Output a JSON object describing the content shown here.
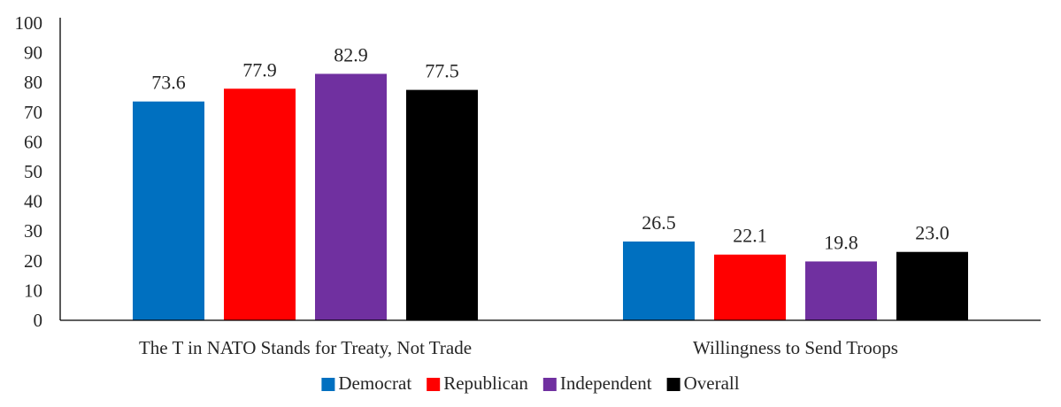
{
  "chart_data": {
    "type": "bar",
    "categories": [
      "The T in NATO Stands for Treaty, Not Trade",
      "Willingness to Send Troops"
    ],
    "series": [
      {
        "name": "Democrat",
        "color": "#0070C0",
        "values": [
          73.6,
          26.5
        ],
        "labels": [
          "73.6",
          "26.5"
        ]
      },
      {
        "name": "Republican",
        "color": "#FF0000",
        "values": [
          77.9,
          22.1
        ],
        "labels": [
          "77.9",
          "22.1"
        ]
      },
      {
        "name": "Independent",
        "color": "#7030A0",
        "values": [
          82.9,
          19.8
        ],
        "labels": [
          "82.9",
          "19.8"
        ]
      },
      {
        "name": "Overall",
        "color": "#000000",
        "values": [
          77.5,
          23.0
        ],
        "labels": [
          "77.5",
          "23.0"
        ]
      }
    ],
    "title": "",
    "xlabel": "",
    "ylabel": "",
    "ylim": [
      0,
      100
    ],
    "yticks": [
      "0",
      "10",
      "20",
      "30",
      "40",
      "50",
      "60",
      "70",
      "80",
      "90",
      "100"
    ],
    "grid": false,
    "legend": "bottom"
  }
}
